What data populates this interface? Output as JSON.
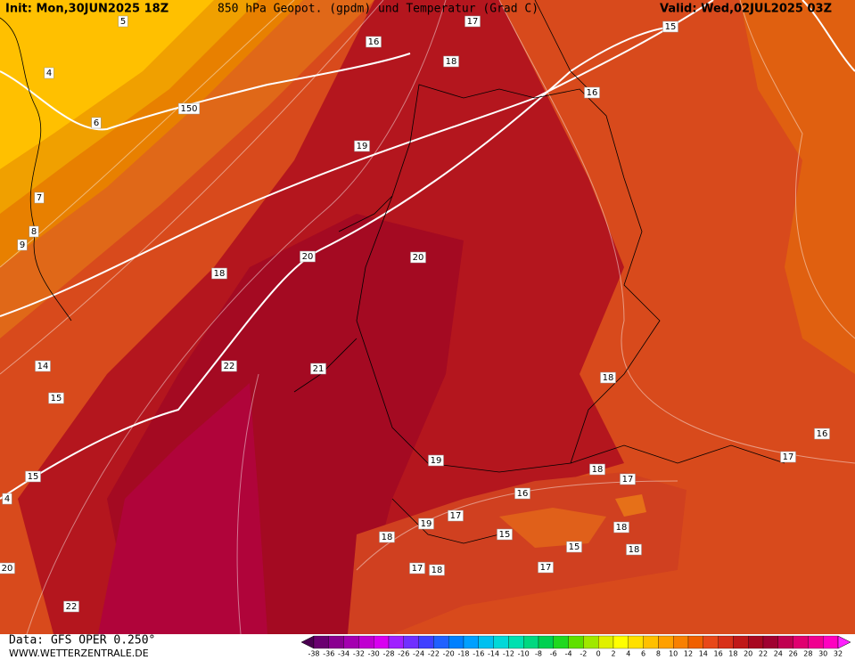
{
  "header": {
    "init": "Init: Mon,30JUN2025 18Z",
    "title": "850 hPa Geopot. (gpdm) und Temperatur (Grad C)",
    "valid": "Valid: Wed,02JUL2025 03Z"
  },
  "footer": {
    "data": "Data: GFS OPER 0.250°",
    "site": "WWW.WETTERZENTRALE.DE"
  },
  "contour_labels": [
    17,
    15,
    16,
    5,
    4,
    18,
    16,
    150,
    6,
    19,
    7,
    8,
    9,
    20,
    20,
    18,
    14,
    18,
    22,
    21,
    15,
    16,
    17,
    19,
    18,
    15,
    17,
    16,
    4,
    17,
    19,
    18,
    18,
    15,
    15,
    18,
    17,
    17,
    18,
    20,
    22
  ],
  "legend": {
    "ticks": [
      -38,
      -36,
      -34,
      -32,
      -30,
      -28,
      -26,
      -24,
      -22,
      -20,
      -18,
      -16,
      -14,
      -12,
      -10,
      -8,
      -6,
      -4,
      -2,
      0,
      2,
      4,
      6,
      8,
      10,
      12,
      14,
      16,
      18,
      20,
      22,
      24,
      26,
      28,
      30,
      32
    ],
    "colors": [
      "#4a0050",
      "#6a0070",
      "#8a0090",
      "#a400b0",
      "#c000d0",
      "#d800f0",
      "#a020ff",
      "#7030ff",
      "#4040ff",
      "#2060ff",
      "#0080ff",
      "#00a0ff",
      "#00c0f0",
      "#00d8d8",
      "#00e0b0",
      "#00d880",
      "#00d050",
      "#20d820",
      "#60e000",
      "#a0e800",
      "#e0f000",
      "#ffff00",
      "#ffe000",
      "#ffc000",
      "#ffa000",
      "#f88000",
      "#f06000",
      "#e84818",
      "#d83018",
      "#c01818",
      "#a80820",
      "#a00030",
      "#c00050",
      "#e00070",
      "#f00090",
      "#ff00c0",
      "#ff20ff"
    ]
  }
}
